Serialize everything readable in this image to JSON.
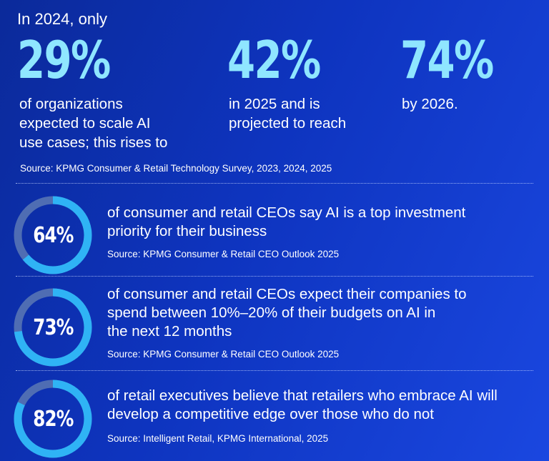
{
  "intro": "In 2024, only",
  "headline_stats": [
    {
      "value": "29%",
      "caption_lines": [
        "of organizations",
        "expected to scale AI",
        "use cases; this rises to"
      ]
    },
    {
      "value": "42%",
      "caption_lines": [
        "in 2025 and is",
        "projected to reach"
      ]
    },
    {
      "value": "74%",
      "caption_lines": [
        "by 2026."
      ]
    }
  ],
  "headline_source": "Source: KPMG Consumer & Retail Technology Survey, 2023, 2024, 2025",
  "ring_stats": [
    {
      "label": "64%",
      "percent": 64,
      "text_lines": [
        "of consumer and retail CEOs say AI is a top investment",
        "priority for their business"
      ],
      "source": "Source: KPMG Consumer & Retail CEO Outlook 2025"
    },
    {
      "label": "73%",
      "percent": 73,
      "text_lines": [
        "of consumer and retail CEOs expect their companies to",
        "spend between 10%–20% of their budgets on AI in",
        "the next 12 months"
      ],
      "source": "Source: KPMG Consumer & Retail CEO Outlook 2025"
    },
    {
      "label": "82%",
      "percent": 82,
      "text_lines": [
        "of retail executives believe that retailers who embrace AI will",
        "develop a competitive edge over those who do not"
      ],
      "source": "Source: Intelligent Retail, KPMG International, 2025"
    }
  ],
  "colors": {
    "accent": "#8fe6ff",
    "ring_fill": "#2fb3f5",
    "ring_track": "#4f6db3"
  }
}
